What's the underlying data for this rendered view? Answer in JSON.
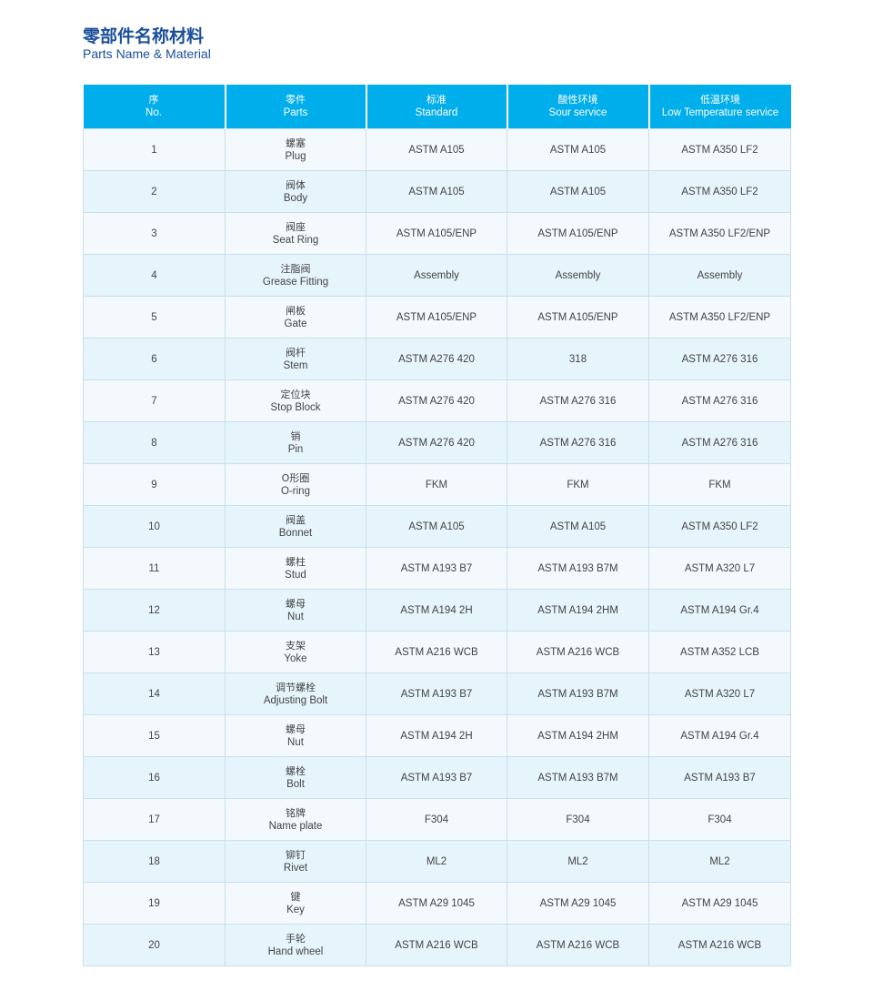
{
  "title": {
    "cn": "零部件名称材料",
    "en": "Parts Name & Material"
  },
  "colors": {
    "header": "#00aeeb",
    "title": "#1a4f9c",
    "row_light": "#f3f9fd",
    "row_alt": "#e6f4fc"
  },
  "headers": [
    {
      "cn": "序",
      "en": "No."
    },
    {
      "cn": "零件",
      "en": "Parts"
    },
    {
      "cn": "标准",
      "en": "Standard"
    },
    {
      "cn": "酸性环境",
      "en": "Sour service"
    },
    {
      "cn": "低温环境",
      "en": "Low Temperature service"
    }
  ],
  "rows": [
    {
      "no": "1",
      "cn": "螺塞",
      "en": "Plug",
      "standard": "ASTM A105",
      "sour": "ASTM A105",
      "low_temp": "ASTM A350 LF2"
    },
    {
      "no": "2",
      "cn": "阀体",
      "en": "Body",
      "standard": "ASTM A105",
      "sour": "ASTM A105",
      "low_temp": "ASTM A350 LF2"
    },
    {
      "no": "3",
      "cn": "阀座",
      "en": "Seat Ring",
      "standard": "ASTM A105/ENP",
      "sour": "ASTM A105/ENP",
      "low_temp": "ASTM A350 LF2/ENP"
    },
    {
      "no": "4",
      "cn": "注脂阀",
      "en": "Grease Fitting",
      "standard": "Assembly",
      "sour": "Assembly",
      "low_temp": "Assembly"
    },
    {
      "no": "5",
      "cn": "闸板",
      "en": "Gate",
      "standard": "ASTM A105/ENP",
      "sour": "ASTM A105/ENP",
      "low_temp": "ASTM A350 LF2/ENP"
    },
    {
      "no": "6",
      "cn": "阀杆",
      "en": "Stem",
      "standard": "ASTM A276 420",
      "sour": "318",
      "low_temp": "ASTM A276 316"
    },
    {
      "no": "7",
      "cn": "定位块",
      "en": "Stop Block",
      "standard": "ASTM A276 420",
      "sour": "ASTM A276 316",
      "low_temp": "ASTM A276 316"
    },
    {
      "no": "8",
      "cn": "销",
      "en": "Pin",
      "standard": "ASTM A276 420",
      "sour": "ASTM A276 316",
      "low_temp": "ASTM A276 316"
    },
    {
      "no": "9",
      "cn": "O形圈",
      "en": "O-ring",
      "standard": "FKM",
      "sour": "FKM",
      "low_temp": "FKM"
    },
    {
      "no": "10",
      "cn": "阀盖",
      "en": "Bonnet",
      "standard": "ASTM A105",
      "sour": "ASTM A105",
      "low_temp": "ASTM A350 LF2"
    },
    {
      "no": "11",
      "cn": "螺柱",
      "en": "Stud",
      "standard": "ASTM A193 B7",
      "sour": "ASTM A193 B7M",
      "low_temp": "ASTM A320 L7"
    },
    {
      "no": "12",
      "cn": "螺母",
      "en": "Nut",
      "standard": "ASTM A194 2H",
      "sour": "ASTM A194 2HM",
      "low_temp": "ASTM A194 Gr.4"
    },
    {
      "no": "13",
      "cn": "支架",
      "en": "Yoke",
      "standard": "ASTM A216 WCB",
      "sour": "ASTM A216 WCB",
      "low_temp": "ASTM A352 LCB"
    },
    {
      "no": "14",
      "cn": "调节螺栓",
      "en": "Adjusting Bolt",
      "standard": "ASTM A193 B7",
      "sour": "ASTM A193 B7M",
      "low_temp": "ASTM A320 L7"
    },
    {
      "no": "15",
      "cn": "螺母",
      "en": "Nut",
      "standard": "ASTM A194 2H",
      "sour": "ASTM A194 2HM",
      "low_temp": "ASTM A194 Gr.4"
    },
    {
      "no": "16",
      "cn": "螺栓",
      "en": "Bolt",
      "standard": "ASTM A193 B7",
      "sour": "ASTM A193 B7M",
      "low_temp": "ASTM A193 B7"
    },
    {
      "no": "17",
      "cn": "铭牌",
      "en": "Name plate",
      "standard": "F304",
      "sour": "F304",
      "low_temp": "F304"
    },
    {
      "no": "18",
      "cn": "铆钉",
      "en": "Rivet",
      "standard": "ML2",
      "sour": "ML2",
      "low_temp": "ML2"
    },
    {
      "no": "19",
      "cn": "键",
      "en": "Key",
      "standard": "ASTM A29 1045",
      "sour": "ASTM A29 1045",
      "low_temp": "ASTM A29 1045"
    },
    {
      "no": "20",
      "cn": "手轮",
      "en": "Hand wheel",
      "standard": "ASTM A216 WCB",
      "sour": "ASTM A216 WCB",
      "low_temp": "ASTM A216 WCB"
    }
  ]
}
